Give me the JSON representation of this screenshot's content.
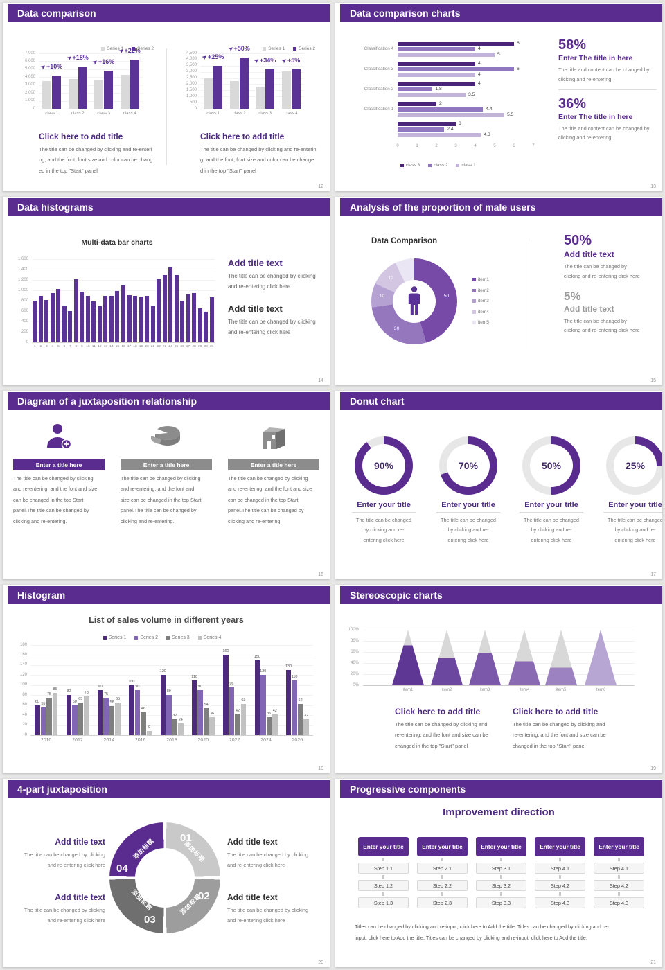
{
  "colors": {
    "accent": "#5b2c8f",
    "accent_dark": "#4b2a80",
    "bar_purple": "#5b3397",
    "bar_gray": "#d9d9d9",
    "s13": [
      "#4a2478",
      "#9177bf",
      "#c2b3da"
    ],
    "donut": [
      "#764aa6",
      "#9577bd",
      "#b6a2d2",
      "#d2c6e3",
      "#ebe6f4"
    ],
    "s18": [
      "#4d2a7e",
      "#8265b5",
      "#7f7f7f",
      "#c2c2c2"
    ],
    "cone": [
      "#5e3795",
      "#6b479f",
      "#7b58a9",
      "#8a6bb3",
      "#9c82c1",
      "#b7a6d4"
    ],
    "cone_gray": "#d8d8d8",
    "ring4": [
      "#c9c9c9",
      "#9d9d9d",
      "#6f6f6f",
      "#5b2c8f"
    ],
    "ring_gray": "#e7e7e7",
    "page_bg": "#e7e6e6"
  },
  "icons": {
    "growth_arrow": "➤"
  },
  "slides": {
    "s12": {
      "title": "Data comparison",
      "page": "12",
      "panels": [
        {
          "yticks": [
            "7,000",
            "6,000",
            "5,000",
            "4,000",
            "3,000",
            "2,000",
            "1,000",
            "0"
          ],
          "ymax": 7000,
          "categories": [
            "class 1",
            "class 2",
            "class 3",
            "class 4"
          ],
          "series": [
            {
              "name": "Series 1",
              "values": [
                3500,
                3800,
                3700,
                4300
              ]
            },
            {
              "name": "Series 2",
              "values": [
                4200,
                5300,
                4800,
                6200
              ]
            }
          ],
          "growth": [
            "+10%",
            "+18%",
            "+16%",
            "+22%"
          ],
          "heading": "Click here to add title",
          "body": [
            "The title can be changed by clicking and re-enteri",
            "ng, and the font, font size and color can be chang",
            "ed in the top \"Start\" panel"
          ]
        },
        {
          "yticks": [
            "4,500",
            "4,000",
            "3,500",
            "3,000",
            "2,500",
            "2,000",
            "1,500",
            "1,000",
            "500",
            "0"
          ],
          "ymax": 4500,
          "categories": [
            "class 1",
            "class 2",
            "class 3",
            "class 4"
          ],
          "series": [
            {
              "name": "Series 1",
              "values": [
                2500,
                2250,
                1800,
                3050
              ]
            },
            {
              "name": "Series 2",
              "values": [
                3500,
                4150,
                3200,
                3200
              ]
            }
          ],
          "growth": [
            "+25%",
            "+50%",
            "+34%",
            "+5%"
          ],
          "heading": "Click here to add title",
          "body": [
            "The title can be changed by clicking and re-enterin",
            "g, and the font, font size and color can be change",
            "d in the top \"Start\" panel"
          ]
        }
      ]
    },
    "s13": {
      "title": "Data comparison charts",
      "page": "13",
      "chart": {
        "groups": [
          {
            "label": "Classification 4",
            "values": [
              "6",
              "4",
              "5"
            ]
          },
          {
            "label": "Classification 3",
            "values": [
              "4",
              "6",
              "4"
            ]
          },
          {
            "label": "Classification 2",
            "values": [
              "4",
              "1.8",
              "3.5"
            ]
          },
          {
            "label": "Classification 1",
            "values": [
              "2",
              "4.4",
              "5.5"
            ]
          },
          {
            "label": "",
            "values": [
              "3",
              "2.4",
              "4.3"
            ]
          }
        ],
        "xticks": [
          "0",
          "1",
          "2",
          "3",
          "4",
          "5",
          "6",
          "7"
        ],
        "legend": [
          "class 3",
          "class 2",
          "class 1"
        ]
      },
      "stats": [
        {
          "value": "58%",
          "heading": "Enter The title in here",
          "body": [
            "The title and content can be changed by",
            "clicking and re-entering."
          ]
        },
        {
          "value": "36%",
          "heading": "Enter The title in here",
          "body": [
            "The title and content can be changed by",
            "clicking and re-entering."
          ]
        }
      ]
    },
    "s14": {
      "title": "Data histograms",
      "page": "14",
      "chart_title": "Multi-data bar charts",
      "yticks": [
        "1,600",
        "1,400",
        "1,200",
        "1,000",
        "800",
        "600",
        "400",
        "200",
        "0"
      ],
      "ymax": 1600,
      "values": [
        800,
        900,
        810,
        950,
        1030,
        700,
        600,
        1210,
        980,
        900,
        790,
        700,
        890,
        900,
        990,
        1100,
        910,
        900,
        880,
        900,
        700,
        1210,
        1300,
        1440,
        1300,
        800,
        940,
        950,
        660,
        590,
        870
      ],
      "xlabels": [
        "1",
        "2",
        "3",
        "4",
        "5",
        "6",
        "7",
        "8",
        "9",
        "10",
        "11",
        "12",
        "13",
        "14",
        "15",
        "16",
        "17",
        "18",
        "19",
        "20",
        "21",
        "22",
        "23",
        "24",
        "25",
        "26",
        "27",
        "28",
        "29",
        "30",
        "31"
      ],
      "blocks": [
        {
          "heading": "Add title text",
          "body": [
            "The title can be changed by clicking",
            "and re-entering click here"
          ]
        },
        {
          "heading": "Add title text",
          "body": [
            "The title can be changed by clicking",
            "and re-entering click here"
          ]
        }
      ]
    },
    "s15": {
      "title": "Analysis of the proportion of male users",
      "page": "15",
      "chart_title": "Data Comparison",
      "values": [
        50,
        30,
        10,
        12,
        8
      ],
      "labels": [
        "50",
        "30",
        "10",
        "12",
        ""
      ],
      "legend": [
        "item1",
        "item2",
        "item3",
        "item4",
        "item5"
      ],
      "stats": [
        {
          "value": "50%",
          "heading": "Add title text",
          "body": [
            "The title can be changed by",
            "clicking and re-entering click here"
          ]
        },
        {
          "value": "5%",
          "heading": "Add title text",
          "body": [
            "The title can be changed by",
            "clicking and re-entering click here"
          ]
        }
      ]
    },
    "s16": {
      "title": "Diagram of a juxtaposition relationship",
      "page": "16",
      "columns": [
        {
          "icon": "person-add-icon",
          "bar_label": "Enter a title here",
          "body": [
            "The title can be changed by clicking",
            "and re-entering, and the font and size",
            "can be changed in the top Start",
            "panel.The title can be changed by",
            "clicking and re-entering."
          ]
        },
        {
          "icon": "pie-3d-icon",
          "bar_label": "Enter a title here",
          "body": [
            "The title can be changed by clicking",
            "and re-entering, and the font and",
            "size can be changed in the top Start",
            "panel.The title can be changed by",
            "clicking and re-entering."
          ]
        },
        {
          "icon": "building-icon",
          "bar_label": "Enter a title here",
          "body": [
            "The title can be changed by clicking",
            "and re-entering, and the font and size",
            "can be changed in the top Start",
            "panel.The title can be changed by",
            "clicking and re-entering."
          ]
        }
      ]
    },
    "s17": {
      "title": "Donut chart",
      "page": "17",
      "donuts": [
        {
          "pct": 90,
          "label": "90%",
          "heading": "Enter your title",
          "body": [
            "The title can be changed",
            "by clicking and re-",
            "entering click here"
          ]
        },
        {
          "pct": 70,
          "label": "70%",
          "heading": "Enter your title",
          "body": [
            "The title can be changed",
            "by clicking and re-",
            "entering click here"
          ]
        },
        {
          "pct": 50,
          "label": "50%",
          "heading": "Enter your title",
          "body": [
            "The title can be changed",
            "by clicking and re-",
            "entering click here"
          ]
        },
        {
          "pct": 25,
          "label": "25%",
          "heading": "Enter your title",
          "body": [
            "The title can be changed",
            "by clicking and re-",
            "entering click here"
          ]
        }
      ]
    },
    "s18": {
      "title": "Histogram",
      "page": "18",
      "chart_title": "List of sales volume in different years",
      "yticks": [
        "180",
        "160",
        "140",
        "120",
        "100",
        "80",
        "60",
        "40",
        "20",
        "0"
      ],
      "ymax": 180,
      "categories": [
        "2010",
        "2012",
        "2014",
        "2016",
        "2018",
        "2020",
        "2022",
        "2024",
        "2026"
      ],
      "series": [
        {
          "name": "Series 1",
          "values": [
            60,
            80,
            90,
            100,
            120,
            110,
            160,
            150,
            130
          ]
        },
        {
          "name": "Series 2",
          "values": [
            55,
            60,
            75,
            90,
            80,
            90,
            96,
            120,
            110
          ]
        },
        {
          "name": "Series 3",
          "values": [
            75,
            65,
            58,
            46,
            32,
            54,
            42,
            36,
            62
          ]
        },
        {
          "name": "Series 4",
          "values": [
            85,
            78,
            65,
            9,
            24,
            36,
            63,
            42,
            32
          ]
        }
      ]
    },
    "s19": {
      "title": "Stereoscopic charts",
      "page": "19",
      "yticks": [
        "100%",
        "80%",
        "60%",
        "40%",
        "20%",
        "0%"
      ],
      "items": [
        "item1",
        "item2",
        "item3",
        "item4",
        "item5",
        "item6"
      ],
      "fill": [
        72,
        50,
        58,
        43,
        32,
        100
      ],
      "blocks": [
        {
          "heading": "Click here to add title",
          "body": [
            "The title can be changed by clicking and",
            "re-entering, and the font and size can be",
            "changed in the top \"Start\" panel"
          ]
        },
        {
          "heading": "Click here to add title",
          "body": [
            "The title can be changed by clicking and",
            "re-entering, and the font and size can be",
            "changed in the top \"Start\" panel"
          ]
        }
      ]
    },
    "s20": {
      "title": "4-part juxtaposition",
      "page": "20",
      "segments": [
        {
          "num": "01",
          "label": "添加标题"
        },
        {
          "num": "02",
          "label": "添加标题"
        },
        {
          "num": "03",
          "label": "添加标题"
        },
        {
          "num": "04",
          "label": "添加标题"
        }
      ],
      "blocks": [
        {
          "heading": "Add title text",
          "body": [
            "The title can be changed by clicking",
            "and re-entering click here"
          ]
        },
        {
          "heading": "Add title text",
          "body": [
            "The title can be changed by clicking",
            "and re-entering click here"
          ]
        },
        {
          "heading": "Add title text",
          "body": [
            "The title can be changed by clicking",
            "and re-entering click here"
          ]
        },
        {
          "heading": "Add title text",
          "body": [
            "The title can be changed by clicking",
            "and re-entering click here"
          ]
        }
      ]
    },
    "s21": {
      "title": "Progressive components",
      "page": "21",
      "heading": "Improvement direction",
      "columns": [
        {
          "header": "Enter your title",
          "steps": [
            "Step 1.1",
            "Step 1.2",
            "Step 1.3"
          ]
        },
        {
          "header": "Enter your title",
          "steps": [
            "Step 2.1",
            "Step 2.2",
            "Step 2.3"
          ]
        },
        {
          "header": "Enter your title",
          "steps": [
            "Step 3.1",
            "Step 3.2",
            "Step 3.3"
          ]
        },
        {
          "header": "Enter your title",
          "steps": [
            "Step 4.1",
            "Step 4.2",
            "Step 4.3"
          ]
        },
        {
          "header": "Enter your title",
          "steps": [
            "Step 4.1",
            "Step 4.2",
            "Step 4.3"
          ]
        }
      ],
      "footer": [
        "Titles can be changed by clicking and re-input, click here to Add the title. Titles can be changed by clicking and re-",
        "input, click here to Add the title. Titles can be changed by clicking and re-input, click here to Add the title."
      ]
    }
  }
}
